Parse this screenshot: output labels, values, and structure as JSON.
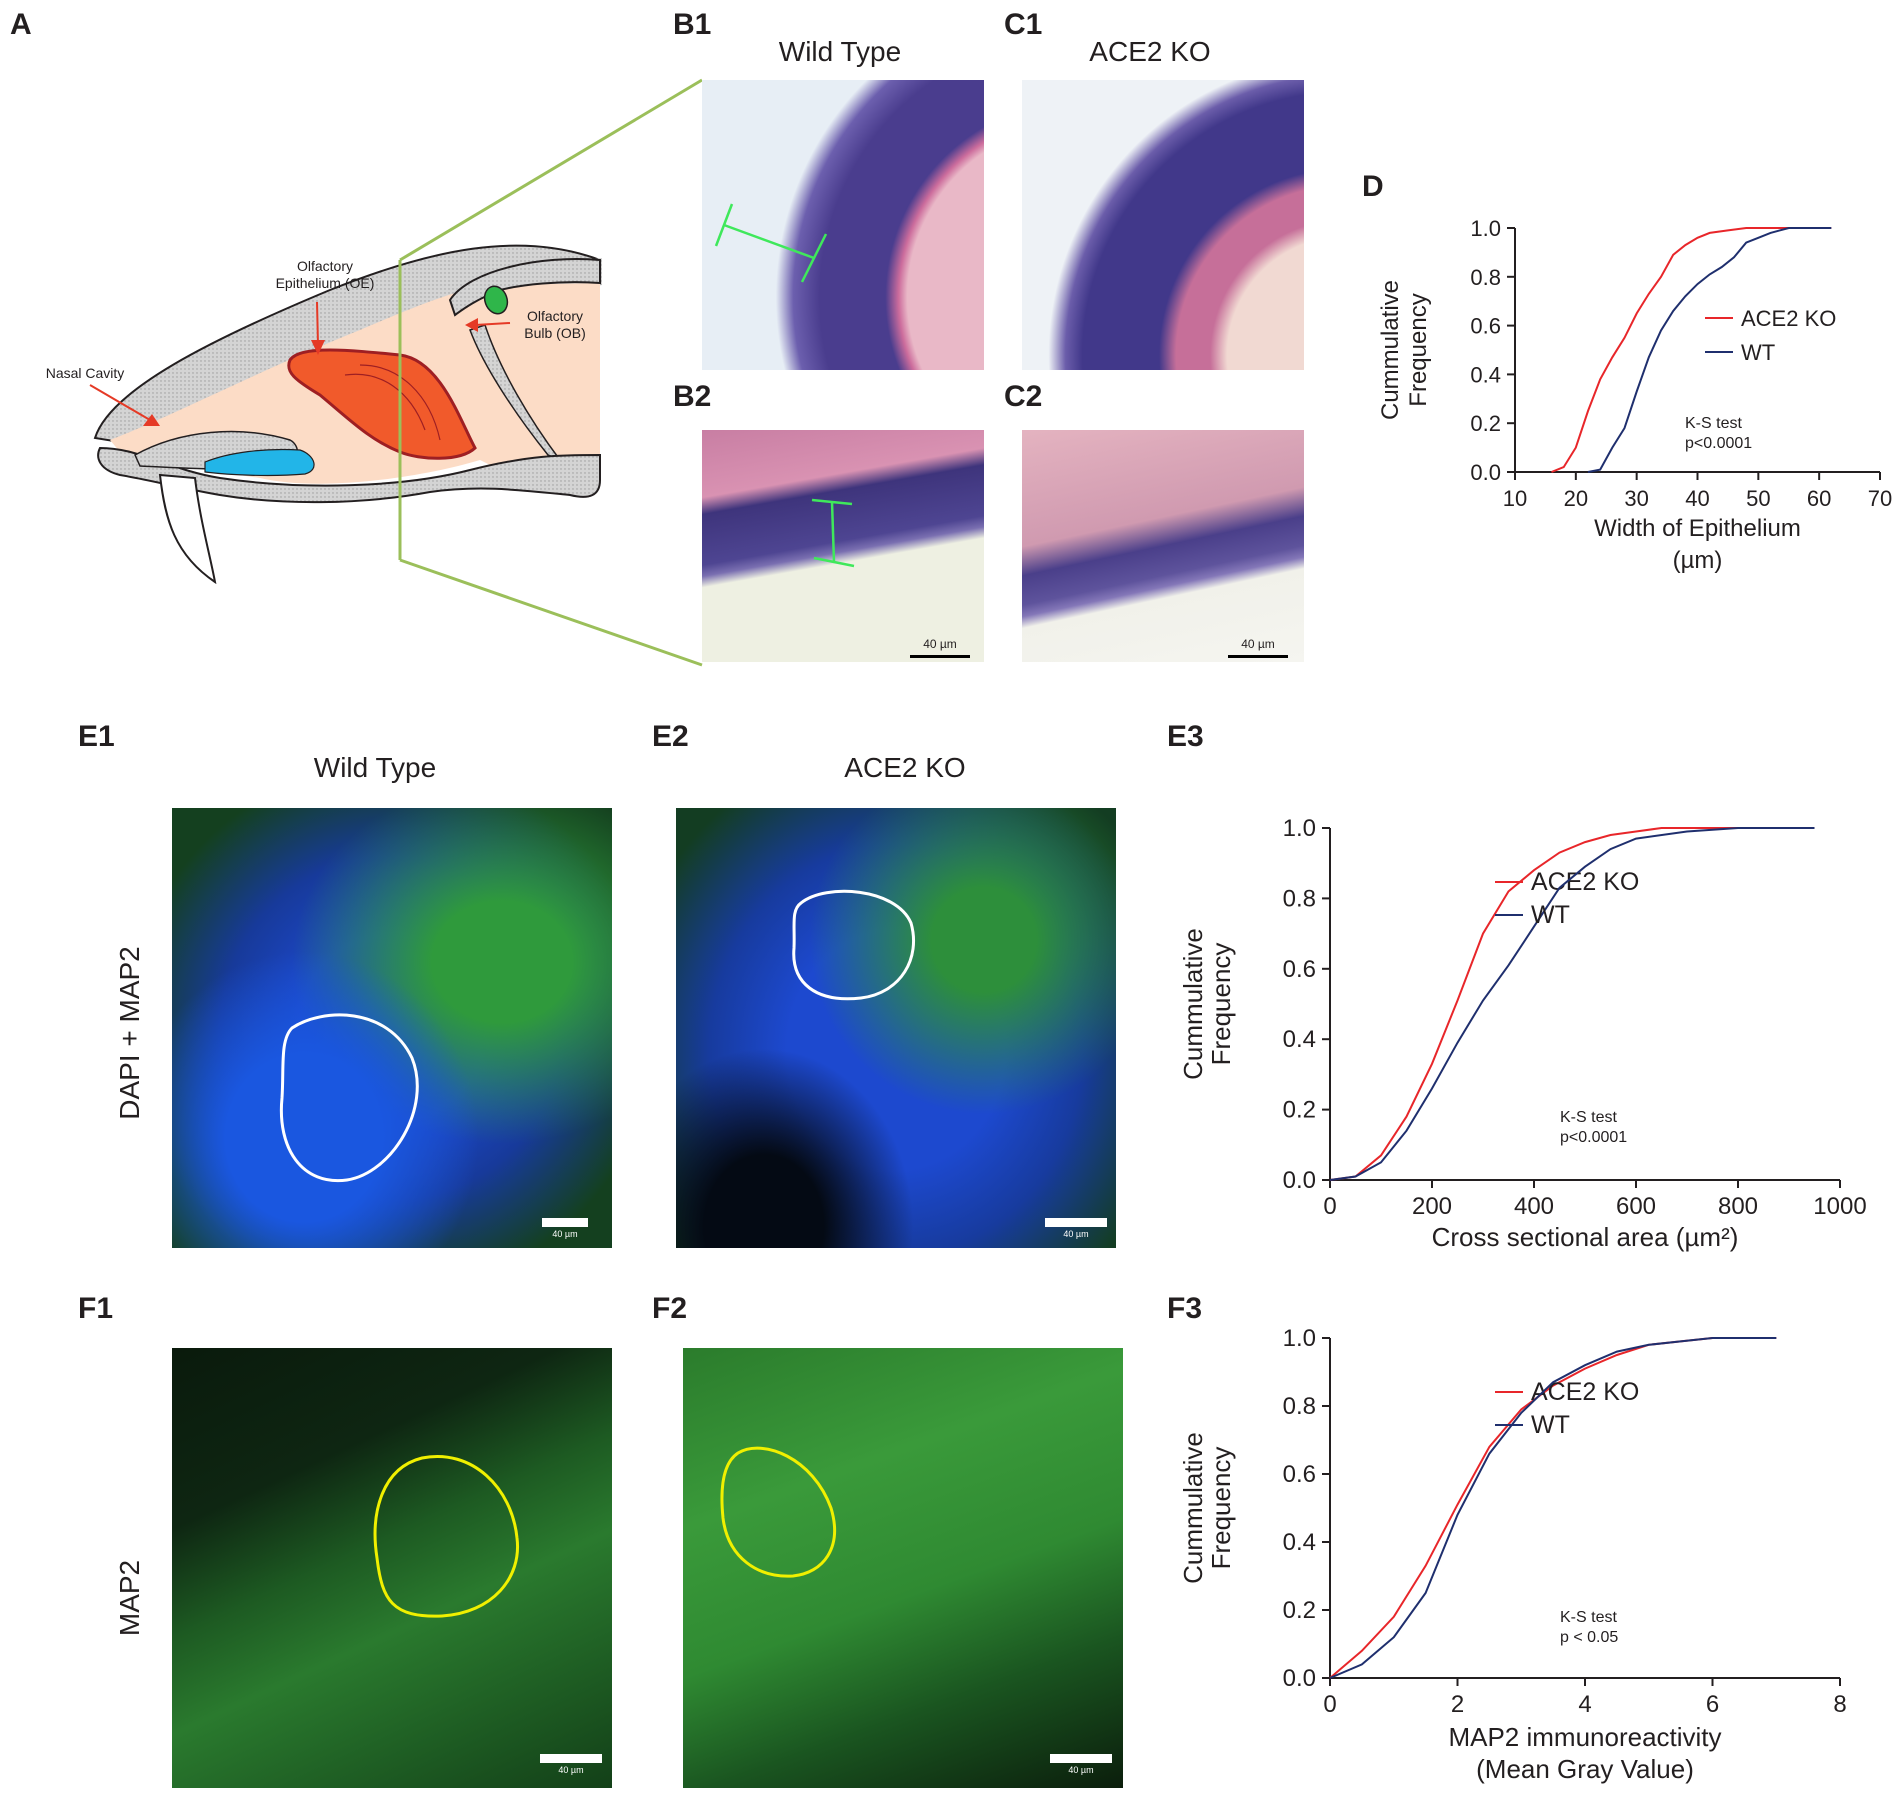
{
  "panels": {
    "A": "A",
    "B1": "B1",
    "C1": "C1",
    "B2": "B2",
    "C2": "C2",
    "D": "D",
    "E1": "E1",
    "E2": "E2",
    "E3": "E3",
    "F1": "F1",
    "F2": "F2",
    "F3": "F3"
  },
  "titles": {
    "wild_type_top": "Wild Type",
    "ace2ko_top": "ACE2 KO",
    "wild_type_e": "Wild Type",
    "ace2ko_e": "ACE2 KO"
  },
  "row_labels": {
    "dapi_map2": "DAPI + MAP2",
    "map2": "MAP2"
  },
  "anatomy": {
    "olfactory_epithelium": [
      "Olfactory",
      "Epithelium (OE)"
    ],
    "olfactory_bulb": [
      "Olfactory",
      "Bulb (OB)"
    ],
    "nasal_cavity": "Nasal Cavity"
  },
  "scalebars": {
    "b2": "40 µm",
    "c2": "40 µm",
    "e1": "40 µm",
    "e2": "40 µm",
    "f1": "40 µm",
    "f2": "40 µm"
  },
  "chart_data": [
    {
      "id": "D",
      "type": "line",
      "xlabel": [
        "Width of Epithelium",
        "(µm)"
      ],
      "ylabel": [
        "Cummulative",
        "Frequency"
      ],
      "xlim": [
        10,
        70
      ],
      "ylim": [
        0,
        1
      ],
      "x_ticks": [
        10,
        20,
        30,
        40,
        50,
        60,
        70
      ],
      "y_ticks": [
        0.0,
        0.2,
        0.4,
        0.6,
        0.8,
        1.0
      ],
      "annotation": [
        "K-S test",
        "p<0.0001"
      ],
      "legend_position": "right",
      "series": [
        {
          "name": "ACE2 KO",
          "color": "#e8262a",
          "points": [
            [
              16,
              0
            ],
            [
              18,
              0.02
            ],
            [
              20,
              0.1
            ],
            [
              22,
              0.25
            ],
            [
              24,
              0.38
            ],
            [
              26,
              0.47
            ],
            [
              28,
              0.55
            ],
            [
              30,
              0.65
            ],
            [
              32,
              0.73
            ],
            [
              34,
              0.8
            ],
            [
              36,
              0.89
            ],
            [
              38,
              0.93
            ],
            [
              40,
              0.96
            ],
            [
              42,
              0.98
            ],
            [
              45,
              0.99
            ],
            [
              48,
              1.0
            ],
            [
              62,
              1.0
            ]
          ]
        },
        {
          "name": "WT",
          "color": "#1f2f6e",
          "points": [
            [
              22,
              0
            ],
            [
              24,
              0.01
            ],
            [
              26,
              0.1
            ],
            [
              28,
              0.18
            ],
            [
              30,
              0.33
            ],
            [
              32,
              0.47
            ],
            [
              34,
              0.58
            ],
            [
              36,
              0.66
            ],
            [
              38,
              0.72
            ],
            [
              40,
              0.77
            ],
            [
              42,
              0.81
            ],
            [
              44,
              0.84
            ],
            [
              46,
              0.88
            ],
            [
              48,
              0.94
            ],
            [
              50,
              0.96
            ],
            [
              52,
              0.98
            ],
            [
              55,
              1.0
            ],
            [
              62,
              1.0
            ]
          ]
        }
      ]
    },
    {
      "id": "E3",
      "type": "line",
      "xlabel": [
        "Cross sectional area (µm²)"
      ],
      "ylabel": [
        "Cummulative",
        "Frequency"
      ],
      "xlim": [
        0,
        1000
      ],
      "ylim": [
        0,
        1
      ],
      "x_ticks": [
        0,
        200,
        400,
        600,
        800,
        1000
      ],
      "y_ticks": [
        0.0,
        0.2,
        0.4,
        0.6,
        0.8,
        1.0
      ],
      "annotation": [
        "K-S test",
        "p<0.0001"
      ],
      "legend_position": "right",
      "series": [
        {
          "name": "ACE2 KO",
          "color": "#e8262a",
          "points": [
            [
              0,
              0
            ],
            [
              50,
              0.01
            ],
            [
              100,
              0.07
            ],
            [
              150,
              0.18
            ],
            [
              200,
              0.33
            ],
            [
              250,
              0.51
            ],
            [
              300,
              0.7
            ],
            [
              350,
              0.82
            ],
            [
              400,
              0.88
            ],
            [
              450,
              0.93
            ],
            [
              500,
              0.96
            ],
            [
              550,
              0.98
            ],
            [
              600,
              0.99
            ],
            [
              650,
              1.0
            ],
            [
              950,
              1.0
            ]
          ]
        },
        {
          "name": "WT",
          "color": "#1f2f6e",
          "points": [
            [
              0,
              0
            ],
            [
              50,
              0.01
            ],
            [
              100,
              0.05
            ],
            [
              150,
              0.14
            ],
            [
              200,
              0.26
            ],
            [
              250,
              0.39
            ],
            [
              300,
              0.51
            ],
            [
              350,
              0.61
            ],
            [
              400,
              0.72
            ],
            [
              450,
              0.83
            ],
            [
              500,
              0.89
            ],
            [
              550,
              0.94
            ],
            [
              600,
              0.97
            ],
            [
              700,
              0.99
            ],
            [
              800,
              1.0
            ],
            [
              950,
              1.0
            ]
          ]
        }
      ]
    },
    {
      "id": "F3",
      "type": "line",
      "xlabel": [
        "MAP2 immunoreactivity",
        "(Mean Gray Value)"
      ],
      "ylabel": [
        "Cummulative",
        "Frequency"
      ],
      "xlim": [
        0,
        8
      ],
      "ylim": [
        0,
        1
      ],
      "x_ticks": [
        0,
        2,
        4,
        6,
        8
      ],
      "y_ticks": [
        0.0,
        0.2,
        0.4,
        0.6,
        0.8,
        1.0
      ],
      "annotation": [
        "K-S test",
        "p < 0.05"
      ],
      "legend_position": "right",
      "series": [
        {
          "name": "ACE2 KO",
          "color": "#e8262a",
          "points": [
            [
              0,
              0
            ],
            [
              0.5,
              0.08
            ],
            [
              1,
              0.18
            ],
            [
              1.5,
              0.33
            ],
            [
              2,
              0.51
            ],
            [
              2.5,
              0.68
            ],
            [
              3,
              0.79
            ],
            [
              3.5,
              0.86
            ],
            [
              4,
              0.91
            ],
            [
              4.5,
              0.95
            ],
            [
              5,
              0.98
            ],
            [
              5.5,
              0.99
            ],
            [
              6,
              1.0
            ],
            [
              7,
              1.0
            ]
          ]
        },
        {
          "name": "WT",
          "color": "#1f2f6e",
          "points": [
            [
              0,
              0
            ],
            [
              0.5,
              0.04
            ],
            [
              1,
              0.12
            ],
            [
              1.5,
              0.25
            ],
            [
              2,
              0.48
            ],
            [
              2.5,
              0.66
            ],
            [
              3,
              0.78
            ],
            [
              3.5,
              0.87
            ],
            [
              4,
              0.92
            ],
            [
              4.5,
              0.96
            ],
            [
              5,
              0.98
            ],
            [
              5.5,
              0.99
            ],
            [
              6,
              1.0
            ],
            [
              7,
              1.0
            ]
          ]
        }
      ]
    }
  ]
}
